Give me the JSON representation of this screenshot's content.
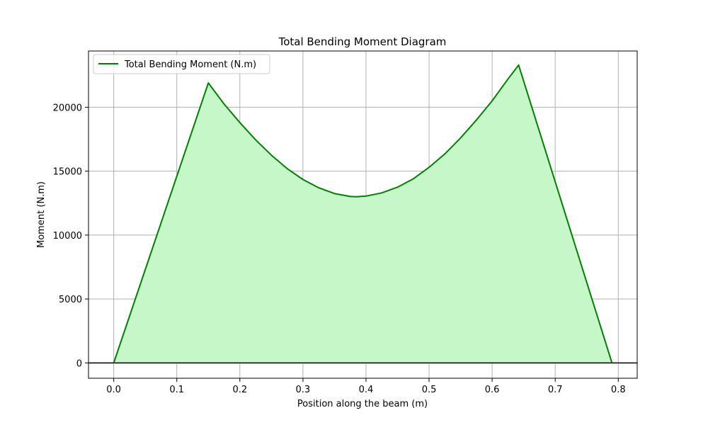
{
  "chart_data": {
    "type": "area",
    "title": "Total Bending Moment Diagram",
    "xlabel": "Position along the beam (m)",
    "ylabel": "Moment (N.m)",
    "xlim": [
      -0.04,
      0.83
    ],
    "ylim": [
      -1200,
      24400
    ],
    "x_ticks": [
      0.0,
      0.1,
      0.2,
      0.3,
      0.4,
      0.5,
      0.6,
      0.7,
      0.8
    ],
    "x_tick_labels": [
      "0.0",
      "0.1",
      "0.2",
      "0.3",
      "0.4",
      "0.5",
      "0.6",
      "0.7",
      "0.8"
    ],
    "y_ticks": [
      0,
      5000,
      10000,
      15000,
      20000
    ],
    "y_tick_labels": [
      "0",
      "5000",
      "10000",
      "15000",
      "20000"
    ],
    "grid": true,
    "legend_position": "top-left",
    "zero_line": true,
    "series": [
      {
        "name": "Total Bending Moment (N.m)",
        "color": "#008000",
        "fill_color": "#c6f7c9",
        "points": [
          [
            0.0,
            0
          ],
          [
            0.15,
            21900
          ],
          [
            0.175,
            20250
          ],
          [
            0.2,
            18800
          ],
          [
            0.225,
            17450
          ],
          [
            0.25,
            16250
          ],
          [
            0.275,
            15200
          ],
          [
            0.3,
            14350
          ],
          [
            0.325,
            13700
          ],
          [
            0.35,
            13250
          ],
          [
            0.375,
            13020
          ],
          [
            0.385,
            13000
          ],
          [
            0.4,
            13050
          ],
          [
            0.425,
            13300
          ],
          [
            0.45,
            13750
          ],
          [
            0.475,
            14400
          ],
          [
            0.5,
            15300
          ],
          [
            0.525,
            16350
          ],
          [
            0.55,
            17600
          ],
          [
            0.575,
            19000
          ],
          [
            0.6,
            20500
          ],
          [
            0.625,
            22200
          ],
          [
            0.642,
            23300
          ],
          [
            0.79,
            0
          ]
        ]
      }
    ]
  }
}
